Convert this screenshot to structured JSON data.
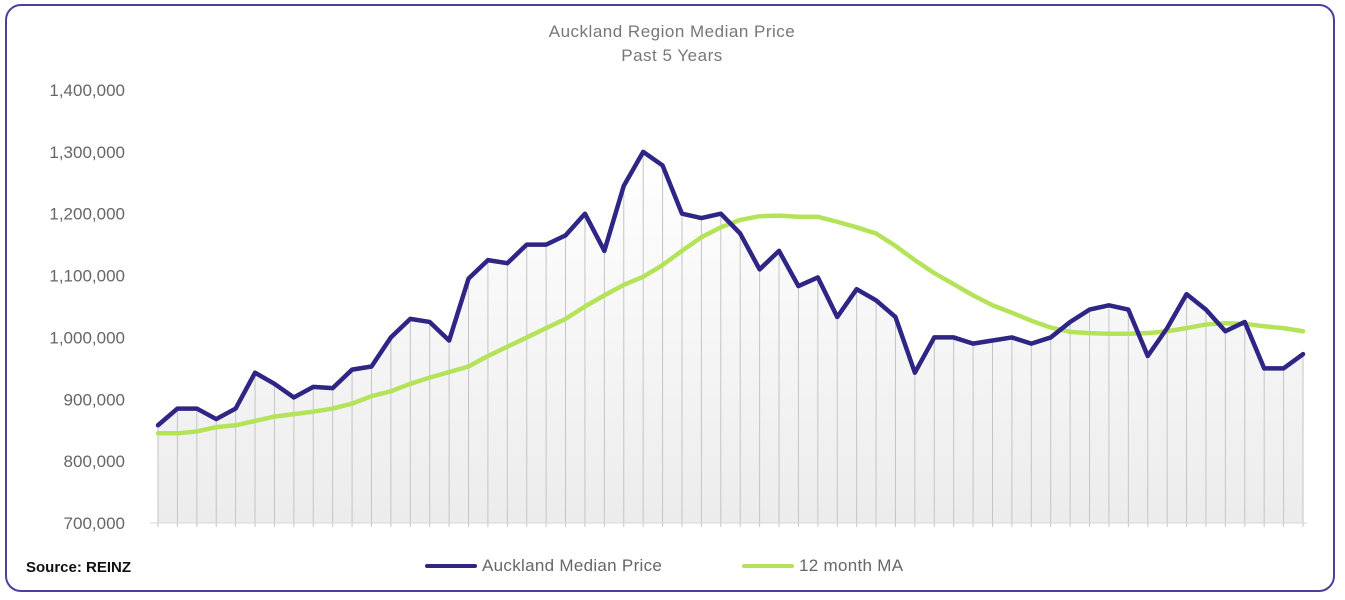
{
  "source_label": "Source: REINZ",
  "chart_data": {
    "type": "line",
    "title": "Auckland Region Median Price",
    "subtitle": "Past 5 Years",
    "xlabel": "",
    "ylabel": "",
    "ylim": [
      700000,
      1400000
    ],
    "yticks": [
      700000,
      800000,
      900000,
      1000000,
      1100000,
      1200000,
      1300000,
      1400000
    ],
    "ytick_labels": [
      "700,000",
      "800,000",
      "900,000",
      "1,000,000",
      "1,100,000",
      "1,200,000",
      "1,300,000",
      "1,400,000"
    ],
    "vertical_drop_lines": true,
    "legend_position": "bottom",
    "series": [
      {
        "name": "Auckland Median Price",
        "color": "#2e2585",
        "values": [
          858000,
          885000,
          885000,
          868000,
          885000,
          943000,
          925000,
          903000,
          920000,
          918000,
          948000,
          953000,
          1000000,
          1030000,
          1025000,
          995000,
          1095000,
          1125000,
          1120000,
          1150000,
          1150000,
          1165000,
          1200000,
          1140000,
          1245000,
          1300000,
          1278000,
          1200000,
          1193000,
          1200000,
          1168000,
          1110000,
          1140000,
          1083000,
          1097000,
          1033000,
          1078000,
          1060000,
          1033000,
          943000,
          1000000,
          1000000,
          990000,
          995000,
          1000000,
          990000,
          1000000,
          1025000,
          1045000,
          1052000,
          1045000,
          970000,
          1015000,
          1070000,
          1045000,
          1010000,
          1025000,
          950000,
          950000,
          973000
        ]
      },
      {
        "name": "12 month MA",
        "color": "#b4e35a",
        "values": [
          845000,
          845000,
          848000,
          855000,
          858000,
          865000,
          872000,
          876000,
          880000,
          885000,
          893000,
          905000,
          913000,
          925000,
          935000,
          944000,
          953000,
          970000,
          985000,
          1000000,
          1015000,
          1030000,
          1050000,
          1068000,
          1085000,
          1098000,
          1117000,
          1140000,
          1162000,
          1178000,
          1190000,
          1196000,
          1197000,
          1195000,
          1195000,
          1187000,
          1178000,
          1168000,
          1148000,
          1125000,
          1104000,
          1086000,
          1068000,
          1052000,
          1040000,
          1027000,
          1016000,
          1009000,
          1007000,
          1006000,
          1006000,
          1007000,
          1010000,
          1015000,
          1021000,
          1023000,
          1022000,
          1018000,
          1015000,
          1010000
        ]
      }
    ]
  }
}
